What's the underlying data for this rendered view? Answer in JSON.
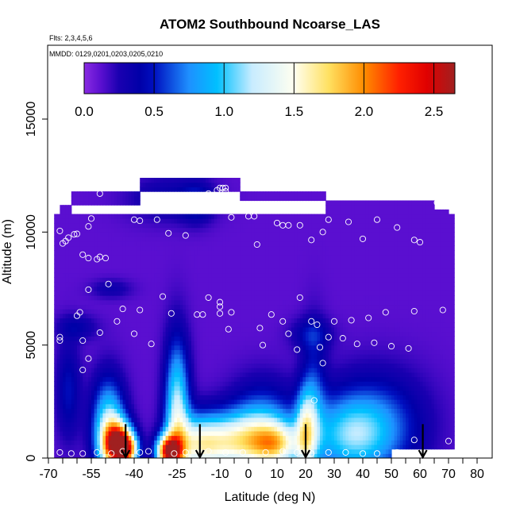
{
  "chart_data": {
    "type": "heatmap",
    "title": "ATOM2 Southbound Ncoarse_LAS",
    "subtitle_flights": "Flts: 2,3,4,5,6",
    "subtitle_dates": "MMDD: 0129,0201,0203,0205,0210",
    "xlabel": "Latitude (deg N)",
    "ylabel": "Altitude (m)",
    "xlim": [
      -70,
      80
    ],
    "ylim": [
      0,
      17500
    ],
    "x_ticks": [
      -70,
      -55,
      -40,
      -25,
      -10,
      0,
      10,
      20,
      30,
      40,
      50,
      60,
      70,
      80
    ],
    "x_tick_labels": [
      "-70",
      "-55",
      "-40",
      "-25",
      "-10",
      "0",
      "10",
      "20",
      "30",
      "40",
      "50",
      "60",
      "70",
      "80"
    ],
    "x_minor_ticks": [
      -65,
      -60,
      -50,
      -45,
      -35,
      -30,
      -20,
      -15,
      -5,
      5,
      15,
      25,
      35,
      45,
      55,
      65,
      75
    ],
    "y_ticks": [
      0,
      5000,
      10000,
      15000
    ],
    "y_tick_labels": [
      "0",
      "5000",
      "10000",
      "15000"
    ],
    "colorbar": {
      "min": 0,
      "max": 2.65,
      "ticks": [
        0.0,
        0.5,
        1.0,
        1.5,
        2.0,
        2.5
      ],
      "tick_labels": [
        "0.0",
        "0.5",
        "1.0",
        "1.5",
        "2.0",
        "2.5"
      ],
      "stops": [
        {
          "v": 0.0,
          "c": "#8a2be2"
        },
        {
          "v": 0.12,
          "c": "#5a0fd0"
        },
        {
          "v": 0.25,
          "c": "#1a00b0"
        },
        {
          "v": 0.4,
          "c": "#0000a8"
        },
        {
          "v": 0.5,
          "c": "#0010c0"
        },
        {
          "v": 0.75,
          "c": "#1e90ff"
        },
        {
          "v": 0.95,
          "c": "#00c0ff"
        },
        {
          "v": 1.2,
          "c": "#c8ecff"
        },
        {
          "v": 1.5,
          "c": "#fffff0"
        },
        {
          "v": 1.75,
          "c": "#ffe060"
        },
        {
          "v": 2.0,
          "c": "#ff8c00"
        },
        {
          "v": 2.25,
          "c": "#ff2000"
        },
        {
          "v": 2.45,
          "c": "#e00000"
        },
        {
          "v": 2.65,
          "c": "#a02020"
        }
      ]
    },
    "field": {
      "background_value": 0.12,
      "domain_blocks": [
        {
          "lat": [
            -38,
            -23
          ],
          "alt": [
            11800,
            12400
          ]
        },
        {
          "lat": [
            -23,
            -3
          ],
          "alt": [
            11800,
            12400
          ]
        },
        {
          "lat": [
            -62,
            -38
          ],
          "alt": [
            11200,
            11900
          ]
        },
        {
          "lat": [
            -3,
            27
          ],
          "alt": [
            11400,
            11900
          ]
        },
        {
          "lat": [
            -66,
            -62
          ],
          "alt": [
            10800,
            11300
          ]
        },
        {
          "lat": [
            27,
            65
          ],
          "alt": [
            10900,
            11500
          ]
        },
        {
          "lat": [
            -68,
            -66
          ],
          "alt": [
            10000,
            10900
          ]
        },
        {
          "lat": [
            65,
            70
          ],
          "alt": [
            10500,
            11000
          ]
        },
        {
          "lat": [
            -68,
            72
          ],
          "alt": [
            0,
            10900
          ]
        }
      ],
      "features": [
        {
          "lat": -46,
          "alt": 600,
          "sx": 3.5,
          "sy": 700,
          "v": 2.2
        },
        {
          "lat": -49,
          "alt": 1500,
          "sx": 4,
          "sy": 1400,
          "v": 1.0
        },
        {
          "lat": -42,
          "alt": 400,
          "sx": 2.5,
          "sy": 500,
          "v": 1.3
        },
        {
          "lat": -28,
          "alt": 300,
          "sx": 3,
          "sy": 500,
          "v": 2.0
        },
        {
          "lat": -25,
          "alt": 2000,
          "sx": 3,
          "sy": 2200,
          "v": 1.1
        },
        {
          "lat": -18,
          "alt": 600,
          "sx": 6,
          "sy": 900,
          "v": 0.9
        },
        {
          "lat": -5,
          "alt": 700,
          "sx": 10,
          "sy": 900,
          "v": 1.2
        },
        {
          "lat": 5,
          "alt": 1500,
          "sx": 8,
          "sy": 1300,
          "v": 0.6
        },
        {
          "lat": 10,
          "alt": 600,
          "sx": 6,
          "sy": 700,
          "v": 1.0
        },
        {
          "lat": 20,
          "alt": 1200,
          "sx": 2.5,
          "sy": 1300,
          "v": 0.9
        },
        {
          "lat": 23,
          "alt": 2500,
          "sx": 3,
          "sy": 2200,
          "v": 0.4
        },
        {
          "lat": 35,
          "alt": 1000,
          "sx": 10,
          "sy": 1200,
          "v": 0.7
        },
        {
          "lat": 45,
          "alt": 1500,
          "sx": 12,
          "sy": 1600,
          "v": 0.5
        },
        {
          "lat": -28,
          "alt": 11500,
          "sx": 10,
          "sy": 700,
          "v": 0.25
        },
        {
          "lat": -18,
          "alt": 11300,
          "sx": 4,
          "sy": 600,
          "v": 0.35
        },
        {
          "lat": 22,
          "alt": 5500,
          "sx": 5,
          "sy": 500,
          "v": 0.3
        },
        {
          "lat": -60,
          "alt": 5800,
          "sx": 5,
          "sy": 400,
          "v": 0.25
        },
        {
          "lat": -48,
          "alt": 7500,
          "sx": 5,
          "sy": 300,
          "v": 0.2
        },
        {
          "lat": -63,
          "alt": 3000,
          "sx": 3,
          "sy": 1500,
          "v": 0.35
        }
      ]
    },
    "sample_points": [
      [
        -42,
        12200
      ],
      [
        -44,
        11950
      ],
      [
        -52,
        11700
      ],
      [
        -38,
        10500
      ],
      [
        -40,
        10550
      ],
      [
        -55,
        10600
      ],
      [
        -32,
        10550
      ],
      [
        -56,
        10250
      ],
      [
        -66,
        10050
      ],
      [
        -63,
        9750
      ],
      [
        -61,
        9900
      ],
      [
        -60,
        9920
      ],
      [
        -64,
        9600
      ],
      [
        -65,
        9500
      ],
      [
        -58,
        9000
      ],
      [
        -56,
        8850
      ],
      [
        -52,
        8900
      ],
      [
        -53,
        8800
      ],
      [
        -50,
        8850
      ],
      [
        -14,
        11700
      ],
      [
        -11,
        11850
      ],
      [
        -10,
        11950
      ],
      [
        -9,
        11950
      ],
      [
        -8,
        11950
      ],
      [
        -8,
        11800
      ],
      [
        0,
        10700
      ],
      [
        2,
        10700
      ],
      [
        -6,
        10650
      ],
      [
        14,
        10300
      ],
      [
        18,
        10300
      ],
      [
        10,
        10400
      ],
      [
        12,
        10300
      ],
      [
        22,
        9650
      ],
      [
        26,
        10000
      ],
      [
        28,
        10550
      ],
      [
        35,
        10450
      ],
      [
        40,
        9700
      ],
      [
        45,
        10550
      ],
      [
        52,
        10200
      ],
      [
        58,
        9650
      ],
      [
        60,
        9550
      ],
      [
        66,
        11300
      ],
      [
        70,
        11250
      ],
      [
        -28,
        9950
      ],
      [
        -22,
        9850
      ],
      [
        3,
        9450
      ],
      [
        -49,
        7700
      ],
      [
        -56,
        7450
      ],
      [
        -30,
        7150
      ],
      [
        -14,
        7100
      ],
      [
        18,
        7100
      ],
      [
        -10,
        6700
      ],
      [
        -10,
        6900
      ],
      [
        -44,
        6600
      ],
      [
        -38,
        6550
      ],
      [
        -27,
        6400
      ],
      [
        -18,
        6350
      ],
      [
        -16,
        6350
      ],
      [
        -6,
        6450
      ],
      [
        -10,
        6400
      ],
      [
        8,
        6350
      ],
      [
        -60,
        6300
      ],
      [
        -59,
        6450
      ],
      [
        22,
        6050
      ],
      [
        30,
        6050
      ],
      [
        36,
        6100
      ],
      [
        42,
        6200
      ],
      [
        48,
        6450
      ],
      [
        58,
        6500
      ],
      [
        68,
        6550
      ],
      [
        -46,
        6050
      ],
      [
        -40,
        5500
      ],
      [
        -52,
        5550
      ],
      [
        -34,
        5050
      ],
      [
        -7,
        5700
      ],
      [
        4,
        5750
      ],
      [
        12,
        6050
      ],
      [
        14,
        5500
      ],
      [
        24,
        5900
      ],
      [
        28,
        5350
      ],
      [
        33,
        5300
      ],
      [
        38,
        5050
      ],
      [
        44,
        5100
      ],
      [
        50,
        4950
      ],
      [
        56,
        4850
      ],
      [
        -66,
        5350
      ],
      [
        -66,
        5200
      ],
      [
        -58,
        5200
      ],
      [
        -56,
        4400
      ],
      [
        -58,
        3900
      ],
      [
        5,
        5000
      ],
      [
        17,
        4800
      ],
      [
        25,
        4900
      ],
      [
        26,
        4200
      ],
      [
        23,
        2550
      ],
      [
        -66,
        250
      ],
      [
        -58,
        200
      ],
      [
        -53,
        250
      ],
      [
        -48,
        200
      ],
      [
        -44,
        300
      ],
      [
        -38,
        250
      ],
      [
        -26,
        200
      ],
      [
        -22,
        250
      ],
      [
        -14,
        300
      ],
      [
        -8,
        250
      ],
      [
        -2,
        250
      ],
      [
        6,
        250
      ],
      [
        12,
        300
      ],
      [
        17,
        250
      ],
      [
        22,
        200
      ],
      [
        28,
        250
      ],
      [
        34,
        250
      ],
      [
        40,
        200
      ],
      [
        45,
        200
      ],
      [
        52,
        250
      ],
      [
        58,
        800
      ],
      [
        70,
        750
      ],
      [
        -62,
        200
      ],
      [
        -35,
        300
      ]
    ],
    "arrows_lat": [
      -43,
      -17,
      20,
      61
    ],
    "masked_corner": {
      "lat_from": 50,
      "alt_to": 450
    }
  }
}
